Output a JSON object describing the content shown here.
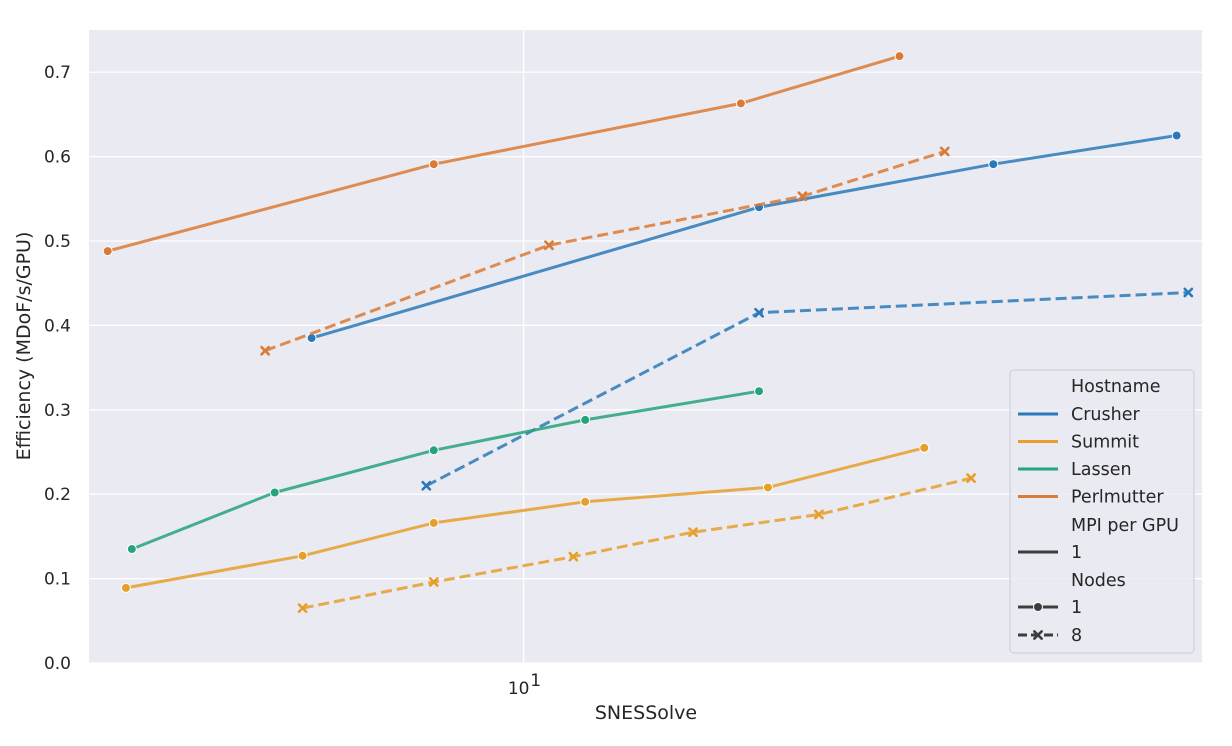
{
  "chart_data": {
    "type": "line",
    "xlabel": "SNESSolve",
    "ylabel": "Efficiency (MDoF/s/GPU)",
    "xscale": "log",
    "xlim": [
      5.1,
      28.6
    ],
    "ylim": [
      0.0,
      0.75
    ],
    "grid": true,
    "x_ticks": [
      {
        "value": 10,
        "base": "10",
        "exp": "1"
      }
    ],
    "y_ticks": [
      {
        "value": 0.0,
        "label": "0.0"
      },
      {
        "value": 0.1,
        "label": "0.1"
      },
      {
        "value": 0.2,
        "label": "0.2"
      },
      {
        "value": 0.3,
        "label": "0.3"
      },
      {
        "value": 0.4,
        "label": "0.4"
      },
      {
        "value": 0.5,
        "label": "0.5"
      },
      {
        "value": 0.6,
        "label": "0.6"
      },
      {
        "value": 0.7,
        "label": "0.7"
      }
    ],
    "series": [
      {
        "host": "Crusher",
        "nodes": "1",
        "color": "#2a7ab9",
        "marker": "circle",
        "dash": false,
        "x": [
          7.2,
          14.4,
          20.7,
          27.5
        ],
        "y": [
          0.385,
          0.54,
          0.591,
          0.625
        ]
      },
      {
        "host": "Crusher",
        "nodes": "8",
        "color": "#2a7ab9",
        "marker": "x",
        "dash": true,
        "x": [
          8.6,
          14.4,
          28.0
        ],
        "y": [
          0.21,
          0.415,
          0.439
        ]
      },
      {
        "host": "Summit",
        "nodes": "1",
        "color": "#e69f2b",
        "marker": "circle",
        "dash": false,
        "x": [
          5.4,
          7.1,
          8.7,
          11.0,
          14.6,
          18.6
        ],
        "y": [
          0.089,
          0.127,
          0.166,
          0.191,
          0.208,
          0.255
        ]
      },
      {
        "host": "Summit",
        "nodes": "8",
        "color": "#e69f2b",
        "marker": "x",
        "dash": true,
        "x": [
          7.1,
          8.7,
          10.8,
          13.0,
          15.8,
          20.0
        ],
        "y": [
          0.065,
          0.096,
          0.126,
          0.155,
          0.176,
          0.219
        ]
      },
      {
        "host": "Lassen",
        "nodes": "1",
        "color": "#26a37c",
        "marker": "circle",
        "dash": false,
        "x": [
          5.45,
          6.8,
          8.7,
          11.0,
          14.4
        ],
        "y": [
          0.135,
          0.202,
          0.252,
          0.288,
          0.322
        ]
      },
      {
        "host": "Perlmutter",
        "nodes": "1",
        "color": "#da7a34",
        "marker": "circle",
        "dash": false,
        "x": [
          5.25,
          8.7,
          14.0,
          17.9
        ],
        "y": [
          0.488,
          0.591,
          0.663,
          0.719
        ]
      },
      {
        "host": "Perlmutter",
        "nodes": "8",
        "color": "#da7a34",
        "marker": "x",
        "dash": true,
        "x": [
          6.7,
          10.4,
          15.4,
          19.2
        ],
        "y": [
          0.37,
          0.495,
          0.553,
          0.606
        ]
      }
    ]
  },
  "legend": {
    "placement": "lower-right",
    "hostname_title": "Hostname",
    "hosts": [
      {
        "label": "Crusher",
        "color": "#2a7ab9"
      },
      {
        "label": "Summit",
        "color": "#e69f2b"
      },
      {
        "label": "Lassen",
        "color": "#26a37c"
      },
      {
        "label": "Perlmutter",
        "color": "#da7a34"
      }
    ],
    "mpi_title": "MPI per GPU",
    "mpi_item": "1",
    "nodes_title": "Nodes",
    "nodes_items": [
      {
        "label": "1",
        "marker": "circle",
        "dash": false
      },
      {
        "label": "8",
        "marker": "x",
        "dash": true
      }
    ]
  },
  "colors": {
    "plot_background": "#eaeaf2",
    "grid": "#ffffff",
    "text": "#262626",
    "legend_neutral": "#3d3d3d"
  }
}
